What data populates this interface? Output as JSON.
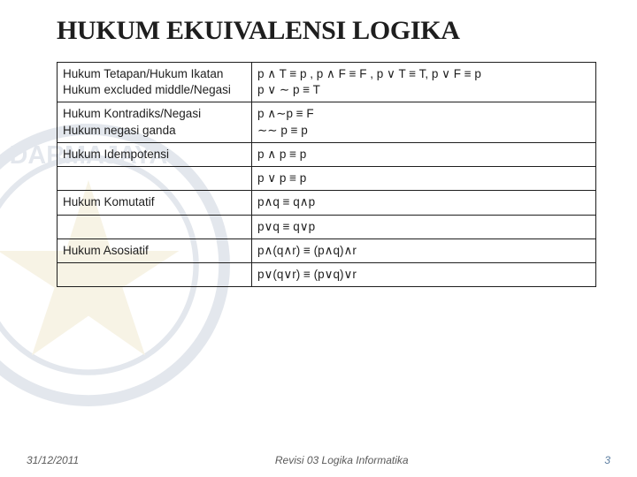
{
  "title": "HUKUM EKUIVALENSI LOGIKA",
  "rows": [
    {
      "law": "Hukum Tetapan/Hukum Ikatan\nHukum excluded middle/Negasi",
      "expr": "p ∧ T ≡ p ,  p ∧ F ≡ F ,   p ∨ T ≡ T,   p ∨ F ≡ p\np ∨ ∼ p ≡ T"
    },
    {
      "law": "Hukum Kontradiks/Negasi\nHukum negasi ganda",
      "expr": " p ∧∼p ≡ F\n∼∼ p ≡ p"
    },
    {
      "law": "Hukum Idempotensi",
      "expr": "p ∧ p ≡  p"
    },
    {
      "law": "",
      "expr": "p ∨ p ≡ p"
    },
    {
      "law": "Hukum Komutatif",
      "expr": "p∧q  ≡ q∧p"
    },
    {
      "law": "",
      "expr": "p∨q  ≡ q∨p"
    },
    {
      "law": "Hukum Asosiatif",
      "expr": "p∧(q∧r) ≡ (p∧q)∧r"
    },
    {
      "law": "",
      "expr": "p∨(q∨r) ≡ (p∨q)∨r"
    }
  ],
  "footer": {
    "date": "31/12/2011",
    "center": "Revisi 03  Logika Informatika",
    "page": "3"
  },
  "colors": {
    "text": "#1e1e1e",
    "border": "#1e1e1e",
    "footer": "#5a5a5a",
    "page": "#5b7da0"
  }
}
